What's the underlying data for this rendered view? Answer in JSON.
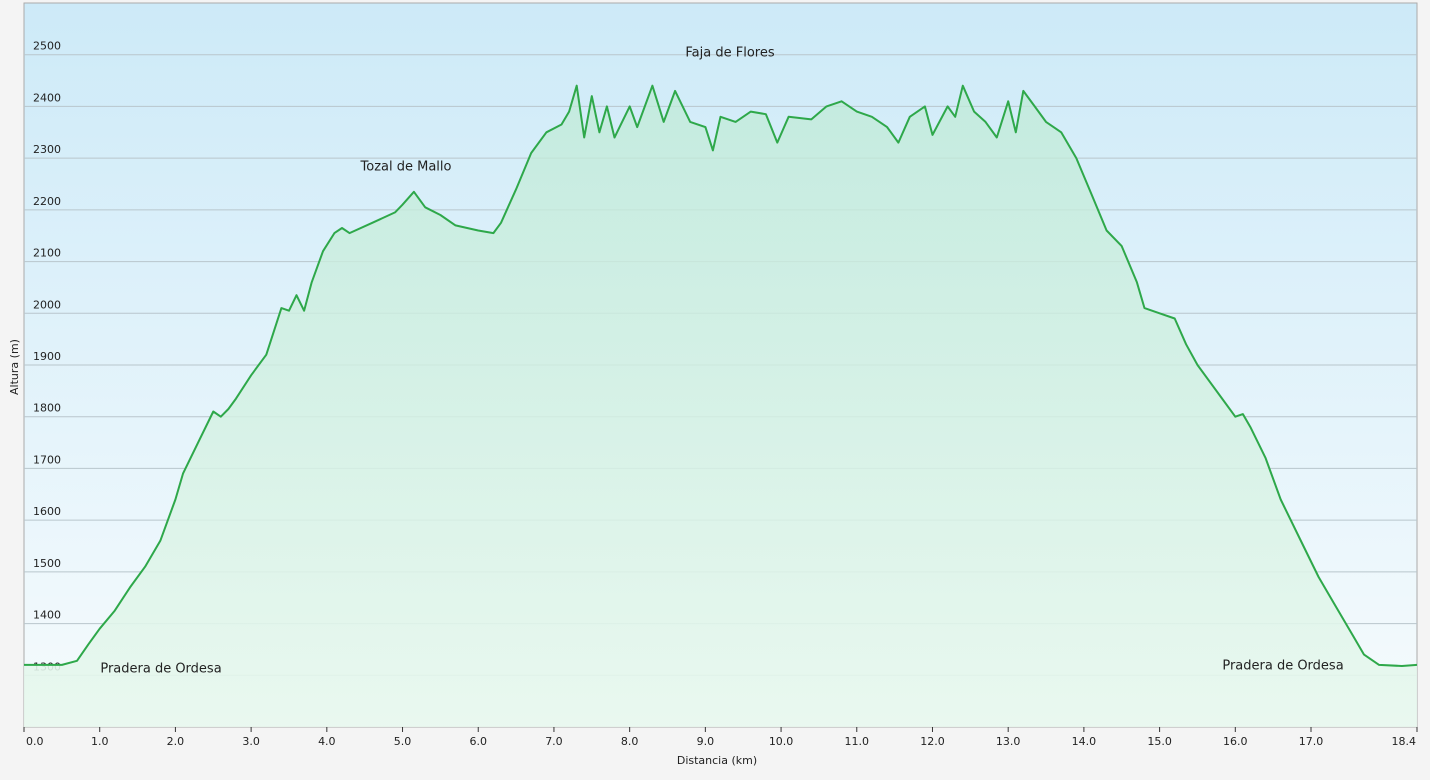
{
  "chart_data": {
    "type": "area",
    "x_label": "Distancia  (km)",
    "y_label": "Altura (m)",
    "annotations": [
      "Tozal de Mallo",
      "Faja de Flores",
      "Pradera de Ordesa",
      "Pradera de Ordesa"
    ],
    "xlim": [
      0,
      18.4
    ],
    "ylim": [
      1200,
      2600
    ],
    "xticks": [
      {
        "value": 0,
        "label": "0.0"
      },
      {
        "value": 1,
        "label": "1.0"
      },
      {
        "value": 2,
        "label": "2.0"
      },
      {
        "value": 3,
        "label": "3.0"
      },
      {
        "value": 4,
        "label": "4.0"
      },
      {
        "value": 5,
        "label": "5.0"
      },
      {
        "value": 6,
        "label": "6.0"
      },
      {
        "value": 7,
        "label": "7.0"
      },
      {
        "value": 8,
        "label": "8.0"
      },
      {
        "value": 9,
        "label": "9.0"
      },
      {
        "value": 10,
        "label": "10.0"
      },
      {
        "value": 11,
        "label": "11.0"
      },
      {
        "value": 12,
        "label": "12.0"
      },
      {
        "value": 13,
        "label": "13.0"
      },
      {
        "value": 14,
        "label": "14.0"
      },
      {
        "value": 15,
        "label": "15.0"
      },
      {
        "value": 16,
        "label": "16.0"
      },
      {
        "value": 17,
        "label": "17.0"
      },
      18.4
    ],
    "yticks": [
      1300,
      1400,
      1500,
      1600,
      1700,
      1800,
      1900,
      2000,
      2100,
      2200,
      2300,
      2400,
      2500
    ],
    "grid": true,
    "color": "#2ea84a",
    "x": [
      0,
      0.5,
      0.7,
      0.85,
      1.0,
      1.2,
      1.4,
      1.6,
      1.8,
      2.0,
      2.1,
      2.3,
      2.5,
      2.6,
      2.7,
      2.8,
      3.0,
      3.2,
      3.4,
      3.5,
      3.6,
      3.7,
      3.8,
      3.95,
      4.1,
      4.2,
      4.3,
      4.6,
      4.9,
      5.0,
      5.15,
      5.3,
      5.5,
      5.7,
      6.0,
      6.2,
      6.3,
      6.5,
      6.7,
      6.9,
      7.1,
      7.2,
      7.3,
      7.4,
      7.5,
      7.6,
      7.7,
      7.8,
      8.0,
      8.1,
      8.3,
      8.45,
      8.6,
      8.8,
      9.0,
      9.1,
      9.2,
      9.4,
      9.6,
      9.8,
      9.95,
      10.1,
      10.4,
      10.6,
      10.8,
      11.0,
      11.2,
      11.4,
      11.55,
      11.7,
      11.9,
      12.0,
      12.2,
      12.3,
      12.4,
      12.55,
      12.7,
      12.85,
      13.0,
      13.1,
      13.2,
      13.35,
      13.5,
      13.7,
      13.9,
      14.1,
      14.3,
      14.5,
      14.7,
      14.8,
      15.0,
      15.2,
      15.35,
      15.5,
      15.8,
      16.0,
      16.1,
      16.2,
      16.4,
      16.6,
      16.9,
      17.1,
      17.3,
      17.5,
      17.7,
      17.9,
      18.2,
      18.4
    ],
    "values": [
      1320,
      1320,
      1328,
      1360,
      1390,
      1425,
      1470,
      1510,
      1560,
      1640,
      1690,
      1750,
      1810,
      1800,
      1815,
      1835,
      1880,
      1920,
      2010,
      2005,
      2035,
      2005,
      2060,
      2120,
      2155,
      2165,
      2155,
      2175,
      2195,
      2210,
      2235,
      2205,
      2190,
      2170,
      2160,
      2155,
      2175,
      2240,
      2310,
      2350,
      2365,
      2390,
      2440,
      2340,
      2420,
      2350,
      2400,
      2340,
      2400,
      2360,
      2440,
      2370,
      2430,
      2370,
      2360,
      2315,
      2380,
      2370,
      2390,
      2385,
      2330,
      2380,
      2375,
      2400,
      2410,
      2390,
      2380,
      2360,
      2330,
      2380,
      2400,
      2345,
      2400,
      2380,
      2440,
      2390,
      2370,
      2340,
      2410,
      2350,
      2430,
      2400,
      2370,
      2350,
      2300,
      2230,
      2160,
      2130,
      2060,
      2010,
      2000,
      1990,
      1940,
      1900,
      1840,
      1800,
      1805,
      1780,
      1720,
      1640,
      1550,
      1490,
      1440,
      1390,
      1340,
      1320,
      1318,
      1320
    ]
  }
}
